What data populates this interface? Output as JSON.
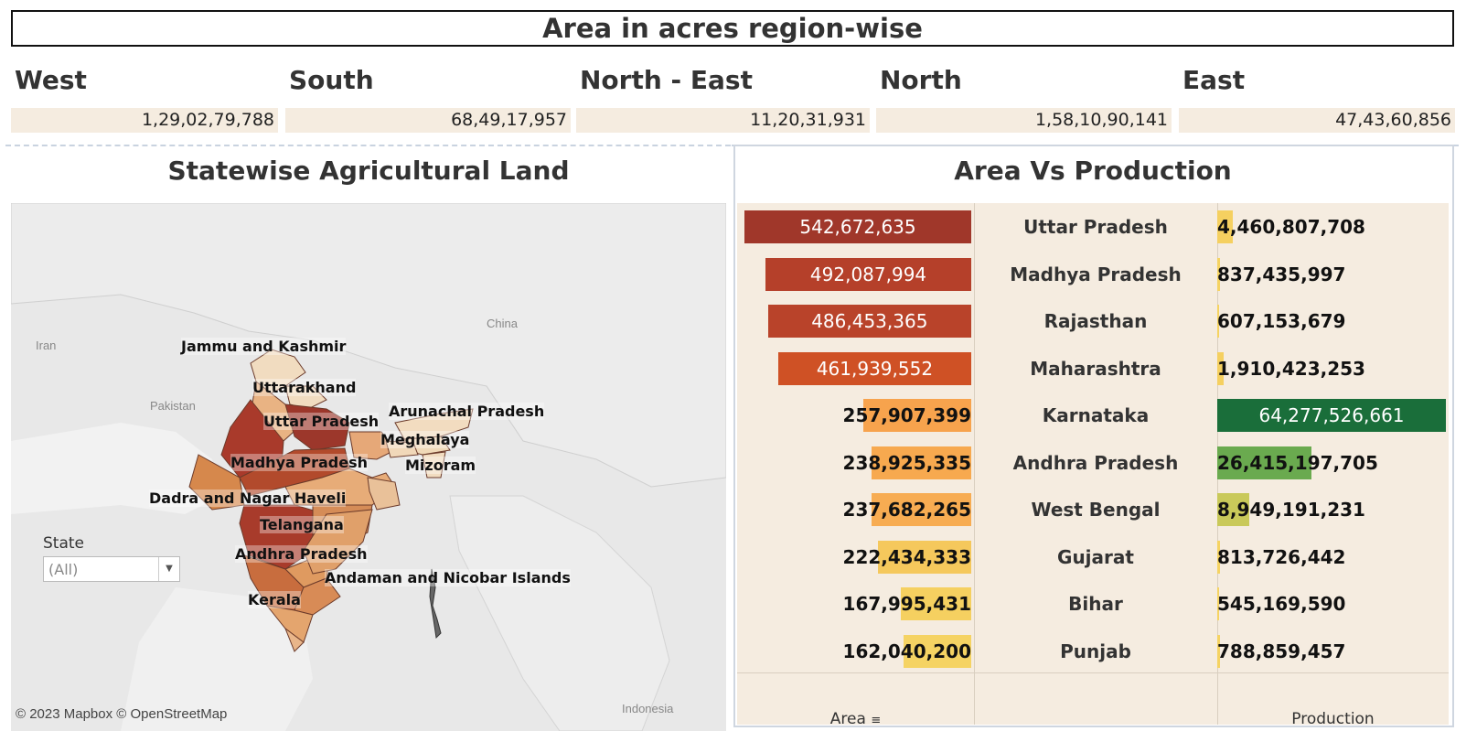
{
  "header": {
    "title": "Area in acres region-wise"
  },
  "regions": [
    {
      "name": "West",
      "value": "1,29,02,79,788"
    },
    {
      "name": "South",
      "value": "68,49,17,957"
    },
    {
      "name": "North - East",
      "value": "11,20,31,931"
    },
    {
      "name": "North",
      "value": "1,58,10,90,141"
    },
    {
      "name": "East",
      "value": "47,43,60,856"
    }
  ],
  "map": {
    "title": "Statewise Agricultural Land",
    "attribution": "© 2023 Mapbox © OpenStreetMap",
    "countries": [
      "Iran",
      "Pakistan",
      "China",
      "Indonesia"
    ],
    "state_labels": [
      "Jammu and Kashmir",
      "Uttarakhand",
      "Uttar Pradesh",
      "Arunachal Pradesh",
      "Meghalaya",
      "Mizoram",
      "Madhya Pradesh",
      "Dadra and Nagar Haveli",
      "Telangana",
      "Andhra Pradesh",
      "Andaman and Nicobar Islands",
      "Kerala"
    ],
    "filter": {
      "title": "State",
      "value": "(All)"
    }
  },
  "chart_data": {
    "type": "bar",
    "title": "Area Vs Production",
    "categories": [
      "Uttar Pradesh",
      "Madhya Pradesh",
      "Rajasthan",
      "Maharashtra",
      "Karnataka",
      "Andhra Pradesh",
      "West Bengal",
      "Gujarat",
      "Bihar",
      "Punjab"
    ],
    "series": [
      {
        "name": "Area",
        "values": [
          542672635,
          492087994,
          486453365,
          461939552,
          257907399,
          238925335,
          237682265,
          222434333,
          167995431,
          162040200
        ],
        "labels": [
          "542,672,635",
          "492,087,994",
          "486,453,365",
          "461,939,552",
          "257,907,399",
          "238,925,335",
          "237,682,265",
          "222,434,333",
          "167,995,431",
          "162,040,200"
        ],
        "colors": [
          "#a0372a",
          "#b5402a",
          "#b9432a",
          "#cf5125",
          "#f7a34d",
          "#f7a94f",
          "#f7ac52",
          "#f5c85c",
          "#f5d060",
          "#f5d363"
        ]
      },
      {
        "name": "Production",
        "values": [
          4460807708,
          837435997,
          607153679,
          1910423253,
          64277526661,
          26415197705,
          8949191231,
          813726442,
          545169590,
          788859457
        ],
        "labels": [
          "4,460,807,708",
          "837,435,997",
          "607,153,679",
          "1,910,423,253",
          "64,277,526,661",
          "26,415,197,705",
          "8,949,191,231",
          "813,726,442",
          "545,169,590",
          "788,859,457"
        ],
        "colors": [
          "#f5d060",
          "#f5d363",
          "#f5d363",
          "#f5d060",
          "#1a6e3a",
          "#6aaa4f",
          "#c9c95a",
          "#f5d363",
          "#f5d363",
          "#f5d363"
        ]
      }
    ],
    "xlabel_left": "Area",
    "xlabel_right": "Production"
  }
}
